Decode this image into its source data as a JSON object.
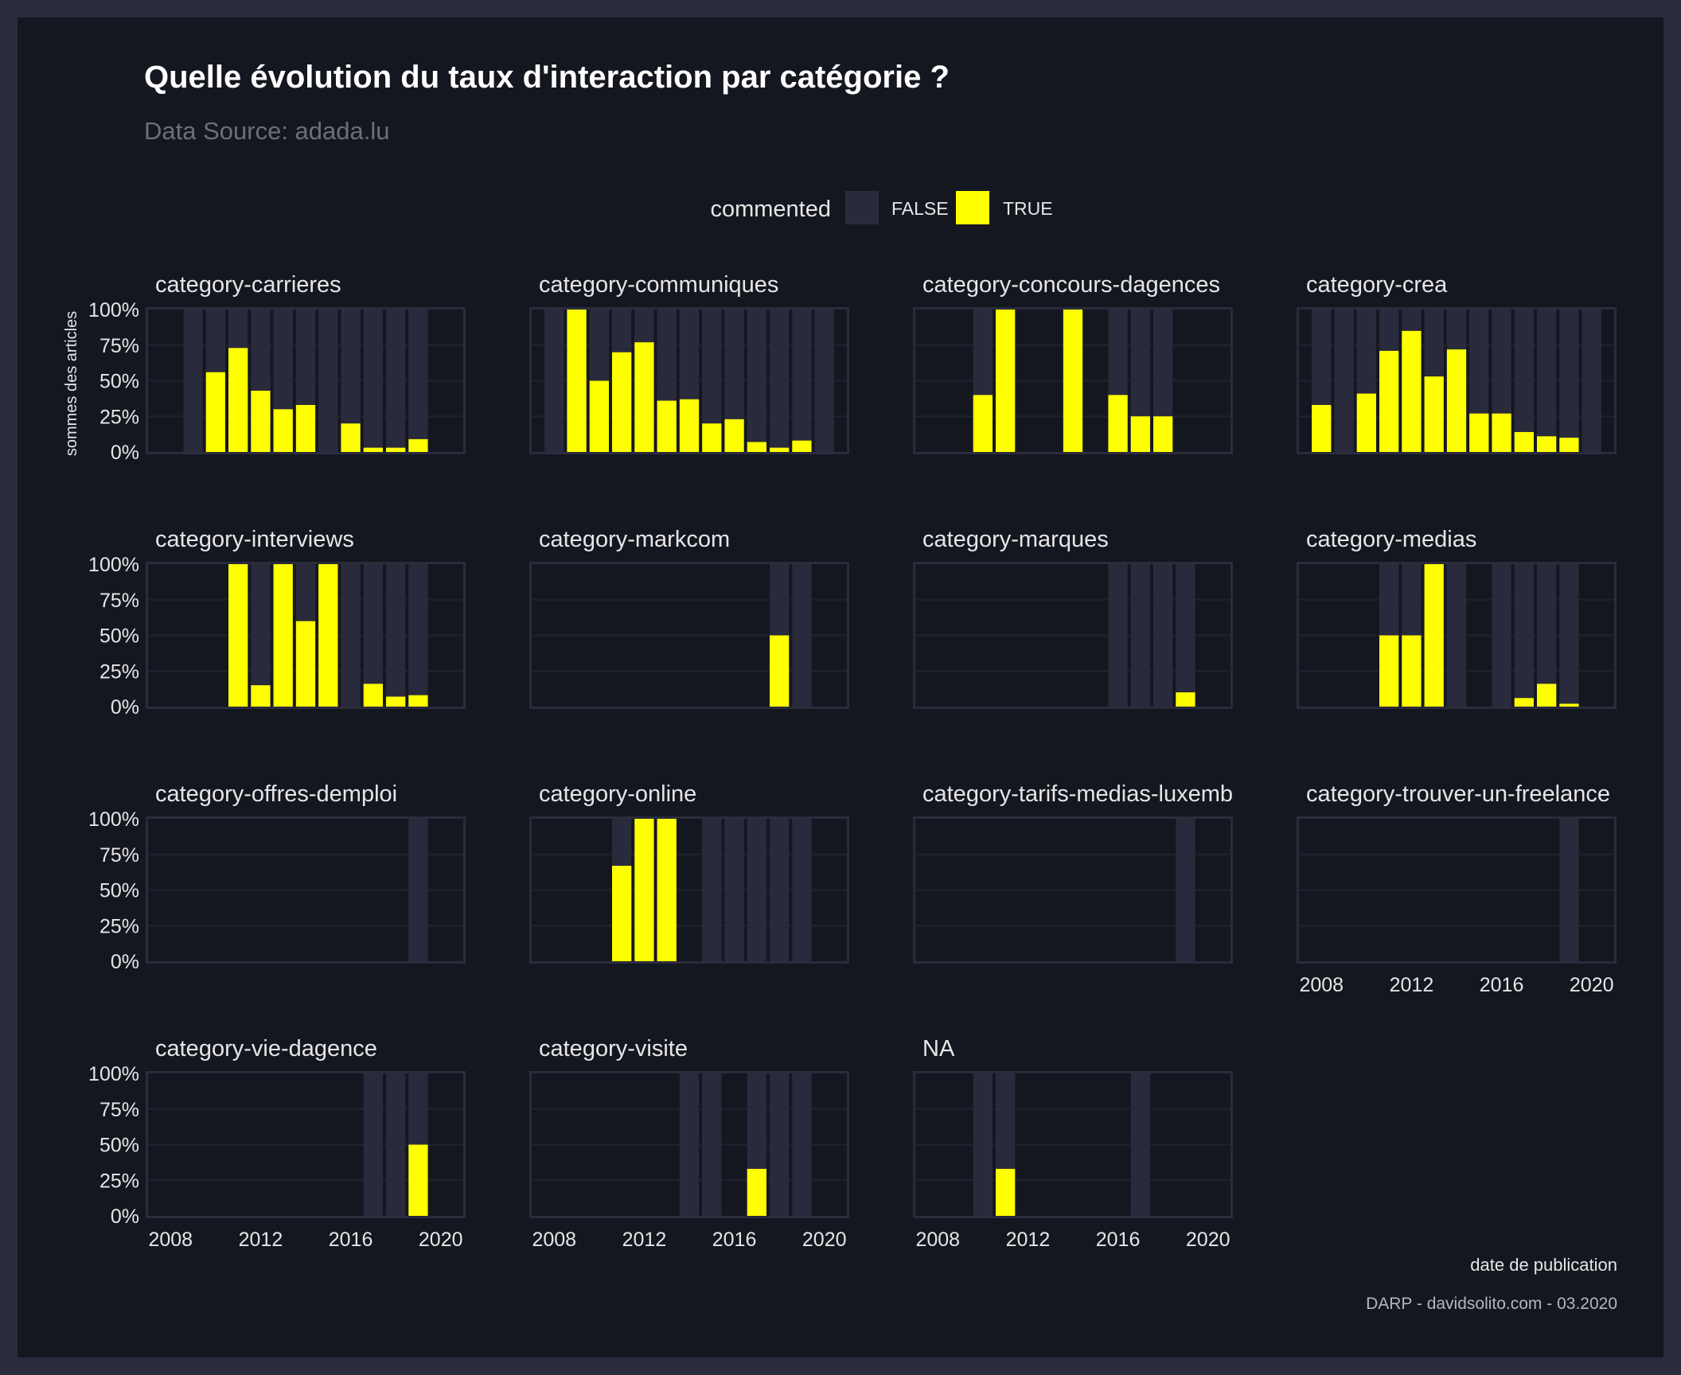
{
  "colors": {
    "outer_border": "#2a2b3d",
    "background": "#151720",
    "panel_border": "#2a2c3c",
    "false_fill": "#292a3b",
    "true_fill": "#ffff00",
    "grid": "#20222e",
    "title": "#ffffff",
    "subtitle": "#6c6e7a",
    "text": "#e6e6e6"
  },
  "header": {
    "title": "Quelle évolution du taux d'interaction par catégorie ?",
    "subtitle": "Data Source: adada.lu"
  },
  "legend": {
    "title": "commented",
    "items": [
      {
        "label": "FALSE",
        "color": "#292a3b"
      },
      {
        "label": "TRUE",
        "color": "#ffff00"
      }
    ]
  },
  "footer": {
    "x_axis_label": "date de publication",
    "credit": "DARP - davidsolito.com - 03.2020"
  },
  "chart_data": {
    "type": "bar",
    "layout": "faceted small multiples, stacked 100% bars (FALSE behind TRUE)",
    "xlabel": "date de publication",
    "ylabel": "sommes des articles",
    "x_ticks": [
      2008,
      2012,
      2016,
      2020
    ],
    "xlim": [
      2007,
      2021
    ],
    "y_ticks": [
      "0%",
      "25%",
      "50%",
      "75%",
      "100%"
    ],
    "ylim": [
      0,
      100
    ],
    "series_names": [
      "FALSE",
      "TRUE"
    ],
    "facets": [
      {
        "name": "category-carrieres",
        "years": [
          2009,
          2010,
          2011,
          2012,
          2013,
          2014,
          2015,
          2016,
          2017,
          2018,
          2019
        ],
        "true_pct": [
          0,
          56,
          73,
          43,
          30,
          33,
          0,
          20,
          3,
          3,
          9
        ]
      },
      {
        "name": "category-communiques",
        "years": [
          2008,
          2009,
          2010,
          2011,
          2012,
          2013,
          2014,
          2015,
          2016,
          2017,
          2018,
          2019,
          2020
        ],
        "true_pct": [
          0,
          100,
          50,
          70,
          77,
          36,
          37,
          20,
          23,
          7,
          3,
          8,
          0
        ]
      },
      {
        "name": "category-concours-dagences",
        "years": [
          2010,
          2011,
          2014,
          2016,
          2017,
          2018
        ],
        "true_pct": [
          40,
          100,
          100,
          40,
          25,
          25
        ]
      },
      {
        "name": "category-crea",
        "years": [
          2008,
          2009,
          2010,
          2011,
          2012,
          2013,
          2014,
          2015,
          2016,
          2017,
          2018,
          2019,
          2020
        ],
        "true_pct": [
          33,
          0,
          41,
          71,
          85,
          53,
          72,
          27,
          27,
          14,
          11,
          10,
          0
        ]
      },
      {
        "name": "category-interviews",
        "years": [
          2011,
          2012,
          2013,
          2014,
          2015,
          2016,
          2017,
          2018,
          2019
        ],
        "true_pct": [
          100,
          15,
          100,
          60,
          100,
          0,
          16,
          7,
          8
        ]
      },
      {
        "name": "category-markcom",
        "years": [
          2018,
          2019
        ],
        "true_pct": [
          50,
          0
        ]
      },
      {
        "name": "category-marques",
        "years": [
          2016,
          2017,
          2018,
          2019
        ],
        "true_pct": [
          0,
          0,
          0,
          10
        ]
      },
      {
        "name": "category-medias",
        "years": [
          2011,
          2012,
          2013,
          2014,
          2016,
          2017,
          2018,
          2019
        ],
        "true_pct": [
          50,
          50,
          100,
          0,
          0,
          6,
          16,
          2
        ]
      },
      {
        "name": "category-offres-demploi",
        "years": [
          2019
        ],
        "true_pct": [
          0
        ]
      },
      {
        "name": "category-online",
        "years": [
          2011,
          2012,
          2013,
          2015,
          2016,
          2017,
          2018,
          2019
        ],
        "true_pct": [
          67,
          100,
          100,
          0,
          0,
          0,
          0,
          0
        ]
      },
      {
        "name": "category-tarifs-medias-luxembo",
        "years": [
          2019
        ],
        "true_pct": [
          0
        ]
      },
      {
        "name": "category-trouver-un-freelance",
        "years": [
          2019
        ],
        "true_pct": [
          0
        ]
      },
      {
        "name": "category-vie-dagence",
        "years": [
          2017,
          2018,
          2019
        ],
        "true_pct": [
          0,
          0,
          50
        ]
      },
      {
        "name": "category-visite",
        "years": [
          2014,
          2015,
          2017,
          2018,
          2019
        ],
        "true_pct": [
          0,
          0,
          33,
          0,
          0
        ]
      },
      {
        "name": "NA",
        "years": [
          2010,
          2011,
          2017
        ],
        "true_pct": [
          0,
          33,
          0
        ]
      }
    ]
  }
}
